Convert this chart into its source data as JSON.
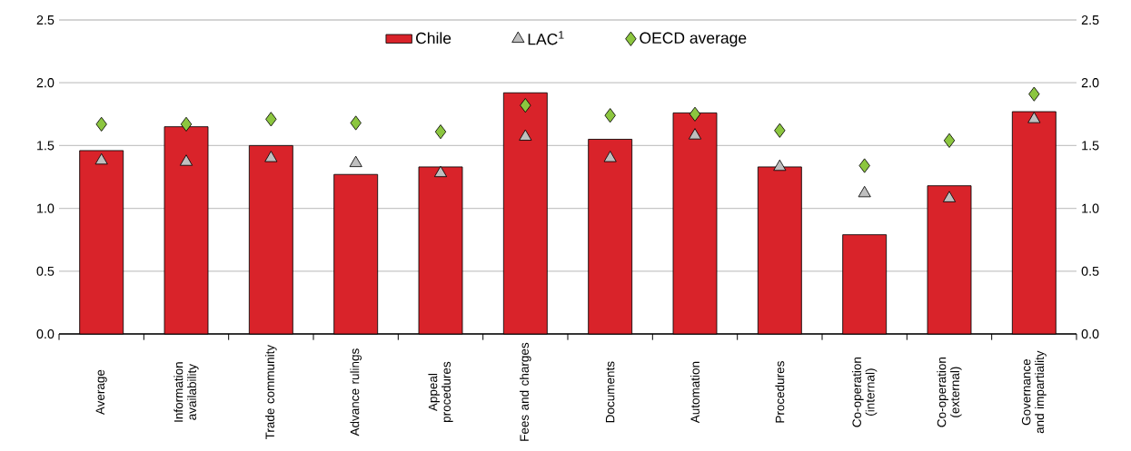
{
  "chart_data": {
    "type": "bar",
    "categories": [
      "Average",
      "Information availability",
      "Trade community",
      "Advance rulings",
      "Appeal procedures",
      "Fees and charges",
      "Documents",
      "Automation",
      "Procedures",
      "Co-operation (internal)",
      "Co-operation (external)",
      "Governance and impartiality"
    ],
    "series": [
      {
        "name": "Chile",
        "color": "#d9232a",
        "values": [
          1.46,
          1.65,
          1.5,
          1.27,
          1.33,
          1.92,
          1.55,
          1.76,
          1.33,
          0.79,
          1.18,
          1.77
        ]
      },
      {
        "name": "LAC$^{1}$",
        "type": "scatter",
        "marker": "triangle",
        "color": "#bfbfbf",
        "values": [
          1.38,
          1.37,
          1.4,
          1.36,
          1.28,
          1.57,
          1.4,
          1.58,
          1.33,
          1.12,
          1.08,
          1.71
        ]
      },
      {
        "name": "OECD average",
        "type": "scatter",
        "marker": "diamond",
        "color": "#8cc63f",
        "values": [
          1.67,
          1.67,
          1.71,
          1.68,
          1.61,
          1.82,
          1.74,
          1.75,
          1.62,
          1.34,
          1.54,
          1.91
        ]
      }
    ],
    "ylim": [
      0,
      2.5
    ],
    "yticks": [
      {
        "value": 0,
        "label": "0.0"
      },
      {
        "value": 0.5,
        "label": "0.5"
      },
      {
        "value": 1,
        "label": "1.0"
      },
      {
        "value": 1.5,
        "label": "1.5"
      },
      {
        "value": 2,
        "label": "2.0"
      },
      {
        "value": 2.5,
        "label": "2.5"
      }
    ],
    "y2lim": [
      0,
      2.5
    ],
    "y2ticks": [
      {
        "value": 0,
        "label": "0.0"
      },
      {
        "value": 0.5,
        "label": "0.5"
      },
      {
        "value": 1,
        "label": "1.0"
      },
      {
        "value": 1.5,
        "label": "1.5"
      },
      {
        "value": 2,
        "label": "2.0"
      },
      {
        "value": 2.5,
        "label": "2.5"
      }
    ],
    "grid": "y",
    "legend": "top"
  }
}
